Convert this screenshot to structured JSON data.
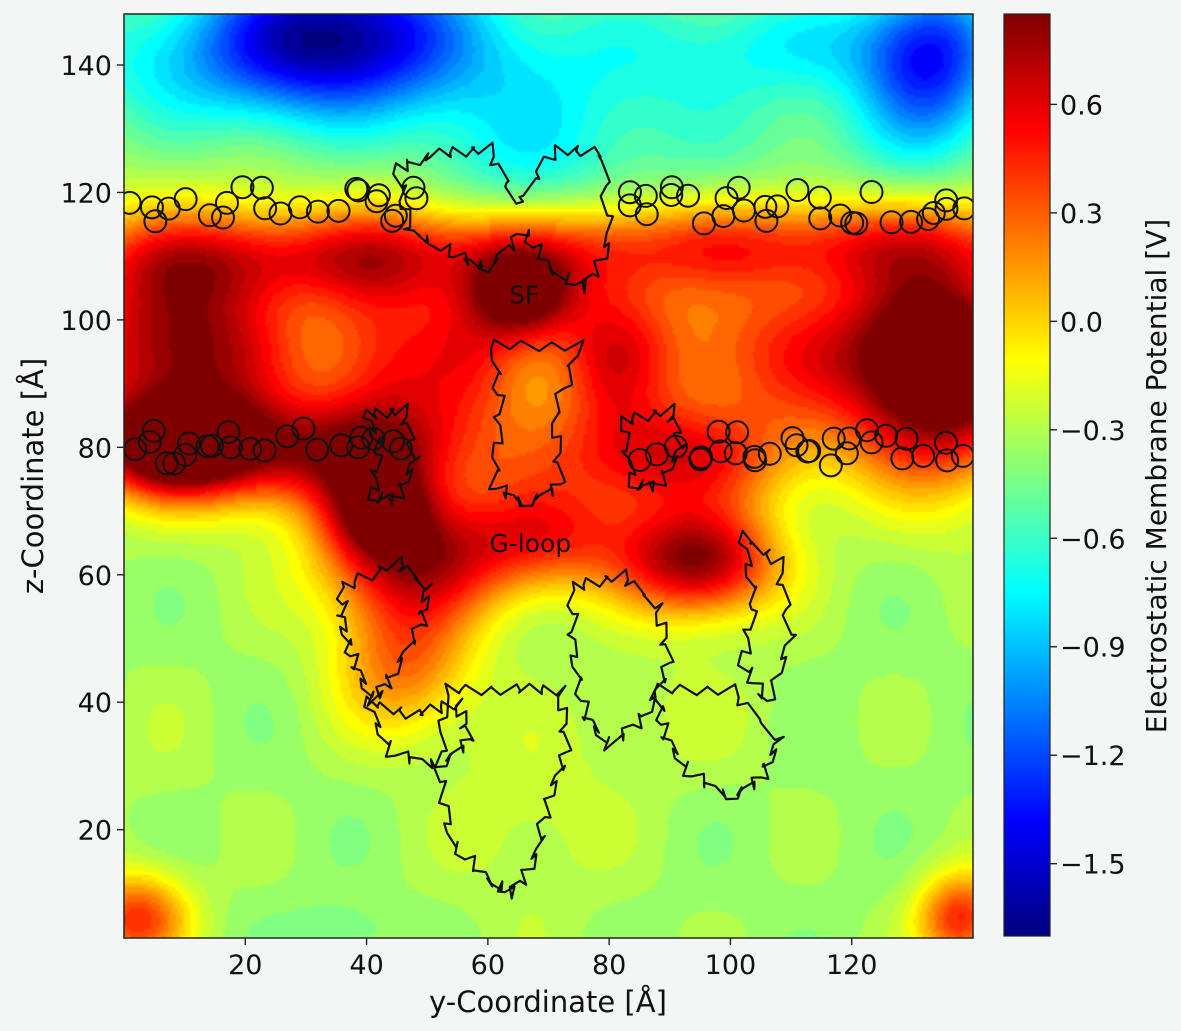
{
  "chart_data": {
    "type": "heatmap",
    "title": "",
    "xlabel": "y-Coordinate [Å]",
    "ylabel": "z-Coordinate [Å]",
    "xlim": [
      0,
      140
    ],
    "ylim": [
      3,
      148
    ],
    "x_ticks": [
      20,
      40,
      60,
      80,
      100,
      120
    ],
    "y_ticks": [
      20,
      40,
      60,
      80,
      100,
      120,
      140
    ],
    "grid": false,
    "colorbar": {
      "label": "Electrostatic Membrane Potential [V]",
      "range": [
        -1.7,
        0.85
      ],
      "ticks": [
        0.6,
        0.3,
        0.0,
        -0.3,
        -0.6,
        -0.9,
        -1.2,
        -1.5
      ],
      "tick_labels": [
        "0.6",
        "0.3",
        "0.0",
        "−0.3",
        "−0.6",
        "−0.9",
        "−1.2",
        "−1.5"
      ],
      "colormap": "jet"
    },
    "annotations": [
      {
        "text": "SF",
        "x": 66,
        "y": 104
      },
      {
        "text": "G-loop",
        "x": 67,
        "y": 65
      }
    ],
    "background_value": -0.35,
    "field_features": [
      {
        "x": 35,
        "y": 146,
        "sx": 14,
        "sy": 8,
        "value": -1.45
      },
      {
        "x": 133,
        "y": 140,
        "sx": 8,
        "sy": 10,
        "value": -1.3
      },
      {
        "x": 20,
        "y": 140,
        "sx": 22,
        "sy": 8,
        "value": -0.85
      },
      {
        "x": 70,
        "y": 138,
        "sx": 25,
        "sy": 10,
        "value": -0.7
      },
      {
        "x": 115,
        "y": 143,
        "sx": 18,
        "sy": 6,
        "value": -0.7
      },
      {
        "x": 66,
        "y": 124,
        "sx": 14,
        "sy": 7,
        "value": -0.6
      },
      {
        "x": 35,
        "y": 128,
        "sx": 22,
        "sy": 8,
        "value": -0.35
      },
      {
        "x": 115,
        "y": 128,
        "sx": 18,
        "sy": 6,
        "value": -0.45
      },
      {
        "x": 10,
        "y": 96,
        "sx": 14,
        "sy": 12,
        "value": 1.0
      },
      {
        "x": 8,
        "y": 80,
        "sx": 9,
        "sy": 5,
        "value": 0.9
      },
      {
        "x": 32,
        "y": 79,
        "sx": 18,
        "sy": 6,
        "value": 0.6
      },
      {
        "x": 135,
        "y": 92,
        "sx": 10,
        "sy": 12,
        "value": 1.1
      },
      {
        "x": 112,
        "y": 95,
        "sx": 22,
        "sy": 10,
        "value": 0.5
      },
      {
        "x": 66,
        "y": 104,
        "sx": 6,
        "sy": 5,
        "value": 0.7
      },
      {
        "x": 43,
        "y": 93,
        "sx": 8,
        "sy": 16,
        "value": 0.4
      },
      {
        "x": 58,
        "y": 95,
        "sx": 7,
        "sy": 10,
        "value": 0.35
      },
      {
        "x": 80,
        "y": 95,
        "sx": 7,
        "sy": 10,
        "value": 0.35
      },
      {
        "x": 95,
        "y": 62,
        "sx": 9,
        "sy": 6,
        "value": 0.9
      },
      {
        "x": 48,
        "y": 62,
        "sx": 11,
        "sy": 7,
        "value": 0.6
      },
      {
        "x": 42,
        "y": 70,
        "sx": 6,
        "sy": 5,
        "value": 0.5
      },
      {
        "x": 70,
        "y": 66,
        "sx": 12,
        "sy": 6,
        "value": 0.4
      },
      {
        "x": 90,
        "y": 78,
        "sx": 14,
        "sy": 6,
        "value": 0.5
      },
      {
        "x": 46,
        "y": 46,
        "sx": 8,
        "sy": 8,
        "value": 0.3
      },
      {
        "x": 110,
        "y": 112,
        "sx": 40,
        "sy": 5,
        "value": 0.35
      },
      {
        "x": 30,
        "y": 110,
        "sx": 30,
        "sy": 5,
        "value": 0.25
      },
      {
        "x": 68,
        "y": 82,
        "sx": 6,
        "sy": 14,
        "value": -0.25
      },
      {
        "x": 67,
        "y": 22,
        "sx": 10,
        "sy": 12,
        "value": -0.2
      },
      {
        "x": 5,
        "y": 32,
        "sx": 8,
        "sy": 10,
        "value": -0.3
      },
      {
        "x": 92,
        "y": 38,
        "sx": 12,
        "sy": 8,
        "value": -0.25
      },
      {
        "x": 2,
        "y": 6,
        "sx": 6,
        "sy": 5,
        "value": 0.5
      },
      {
        "x": 138,
        "y": 6,
        "sx": 5,
        "sy": 5,
        "value": 0.55
      },
      {
        "x": 35,
        "y": 4,
        "sx": 6,
        "sy": 3,
        "value": -0.5
      }
    ],
    "lipid_rows": [
      {
        "z": 118,
        "x_ranges": [
          [
            0,
            50
          ],
          [
            82,
            140
          ]
        ]
      },
      {
        "z": 80,
        "x_ranges": [
          [
            0,
            48
          ],
          [
            84,
            140
          ]
        ]
      }
    ]
  }
}
